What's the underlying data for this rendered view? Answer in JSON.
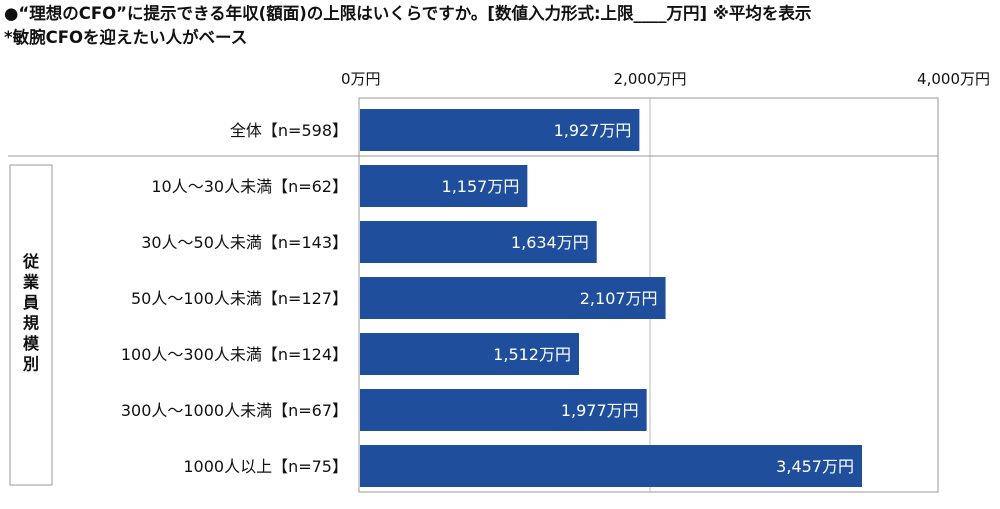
{
  "title_lines": [
    "●“理想のCFO”に提示できる年収(額面)の上限はいくらですか。[数値入力形式:上限____万円] ※平均を表示",
    "*敏腕CFOを迎えたい人がベース"
  ],
  "chart_data": {
    "type": "bar",
    "orientation": "horizontal",
    "unit": "万円",
    "xlim": [
      0,
      4000
    ],
    "ticks": [
      0,
      2000,
      4000
    ],
    "tick_labels": [
      "0万円",
      "2,000万円",
      "4,000万円"
    ],
    "grid": true,
    "group_label": "従業員規模別",
    "categories": [
      "全体【n=598】",
      "10人～30人未満【n=62】",
      "30人～50人未満【n=143】",
      "50人～100人未満【n=127】",
      "100人～300人未満【n=124】",
      "300人～1000人未満【n=67】",
      "1000人以上【n=75】"
    ],
    "values": [
      1927,
      1157,
      1634,
      2107,
      1512,
      1977,
      3457
    ],
    "value_labels": [
      "1,927万円",
      "1,157万円",
      "1,634万円",
      "2,107万円",
      "1,512万円",
      "1,977万円",
      "3,457万円"
    ],
    "bar_color": "#1f4f9c",
    "value_label_color": "#ffffff"
  }
}
